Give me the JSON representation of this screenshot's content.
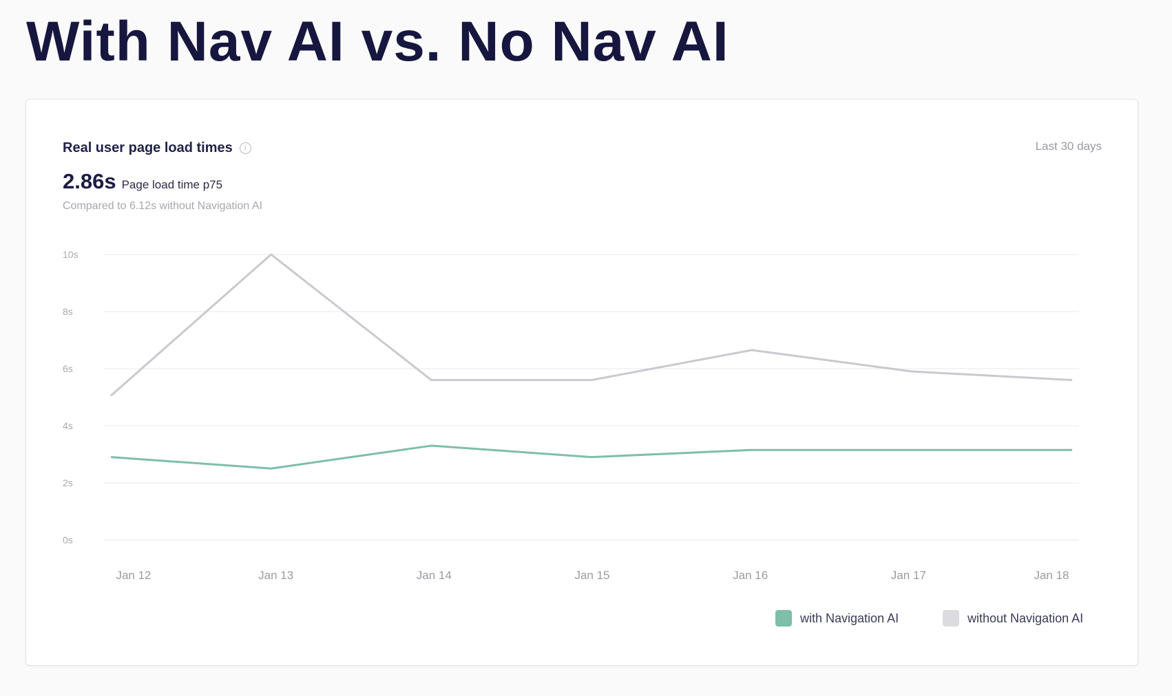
{
  "page_title": "With Nav AI vs. No Nav AI",
  "card": {
    "title": "Real user page load times",
    "info_icon": "info-icon",
    "metric_value": "2.86s",
    "metric_label": "Page load time p75",
    "comparison": "Compared to 6.12s without Navigation AI",
    "range": "Last 30 days"
  },
  "colors": {
    "with": "#7dbfa9",
    "without": "#c9c9ce",
    "title": "#16163f"
  },
  "chart_data": {
    "type": "line",
    "categories": [
      "Jan 12",
      "Jan 13",
      "Jan 14",
      "Jan 15",
      "Jan 16",
      "Jan 17",
      "Jan 18"
    ],
    "yticks": [
      "0s",
      "2s",
      "4s",
      "6s",
      "8s",
      "10s"
    ],
    "ylim": [
      0,
      10
    ],
    "grid": true,
    "legend_placement": "bottom-right",
    "series": [
      {
        "name": "with Navigation AI",
        "color": "#7dbfa9",
        "values": [
          2.9,
          2.5,
          3.3,
          2.9,
          3.15,
          3.15,
          3.15
        ]
      },
      {
        "name": "without Navigation AI",
        "color": "#c9c9ce",
        "values": [
          5.05,
          10.0,
          5.6,
          5.6,
          6.65,
          5.9,
          5.6
        ]
      }
    ]
  }
}
